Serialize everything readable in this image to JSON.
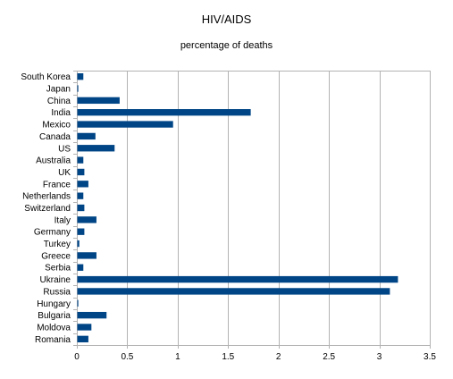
{
  "chart_data": {
    "type": "bar",
    "orientation": "horizontal",
    "title": "HIV/AIDS",
    "subtitle": "percentage of deaths",
    "xlabel": "",
    "ylabel": "",
    "xlim": [
      0,
      3.5
    ],
    "xticks": [
      0,
      0.5,
      1,
      1.5,
      2,
      2.5,
      3,
      3.5
    ],
    "grid": true,
    "legend": "none",
    "bar_color": "#004586",
    "categories": [
      "South Korea",
      "Japan",
      "China",
      "India",
      "Mexico",
      "Canada",
      "US",
      "Australia",
      "UK",
      "France",
      "Netherlands",
      "Switzerland",
      "Italy",
      "Germany",
      "Turkey",
      "Greece",
      "Serbia",
      "Ukraine",
      "Russia",
      "Hungary",
      "Bulgaria",
      "Moldova",
      "Romania"
    ],
    "values": [
      0.06,
      0.01,
      0.42,
      1.72,
      0.95,
      0.18,
      0.37,
      0.06,
      0.07,
      0.11,
      0.06,
      0.07,
      0.19,
      0.07,
      0.02,
      0.19,
      0.06,
      3.18,
      3.1,
      0.01,
      0.29,
      0.14,
      0.11
    ]
  }
}
